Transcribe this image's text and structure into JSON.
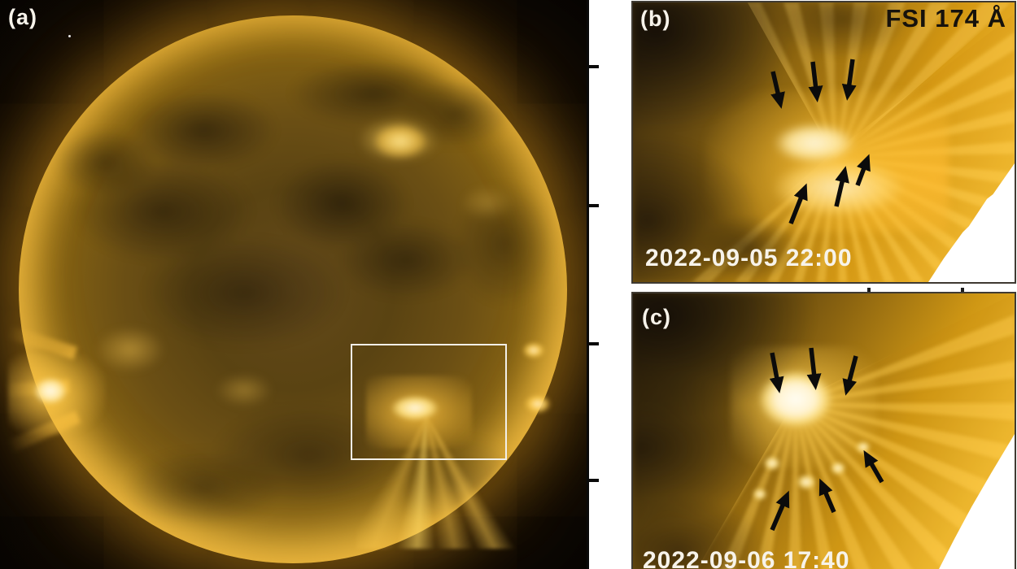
{
  "colors": {
    "background_black": "#070503",
    "panel_gap_white": "#ffffff",
    "solar_gold": "#d79b15",
    "bright_core": "#fff6dc",
    "annotation_arrow": "#0b0b0b",
    "label_white": "#f7f3ea",
    "instrument_text": "#16120c",
    "panel_border": "#3f3a32",
    "region_box_white": "#f2efe8"
  },
  "panels": {
    "a": {
      "label": "(a)"
    },
    "b": {
      "label": "(b)",
      "instrument": "FSI 174 Å",
      "timestamp": "2022-09-05 22:00",
      "arrows": [
        [
          172,
          85,
          181,
          124
        ],
        [
          221,
          73,
          226,
          116
        ],
        [
          270,
          70,
          264,
          114
        ],
        [
          194,
          272,
          211,
          229
        ],
        [
          250,
          251,
          260,
          208
        ],
        [
          276,
          225,
          288,
          193
        ]
      ]
    },
    "c": {
      "label": "(c)",
      "timestamp": "2022-09-06 17:40",
      "arrows": [
        [
          171,
          73,
          179,
          116
        ],
        [
          219,
          67,
          224,
          112
        ],
        [
          274,
          77,
          263,
          119
        ],
        [
          171,
          291,
          189,
          249
        ],
        [
          247,
          269,
          232,
          234
        ],
        [
          306,
          232,
          287,
          199
        ]
      ]
    }
  }
}
